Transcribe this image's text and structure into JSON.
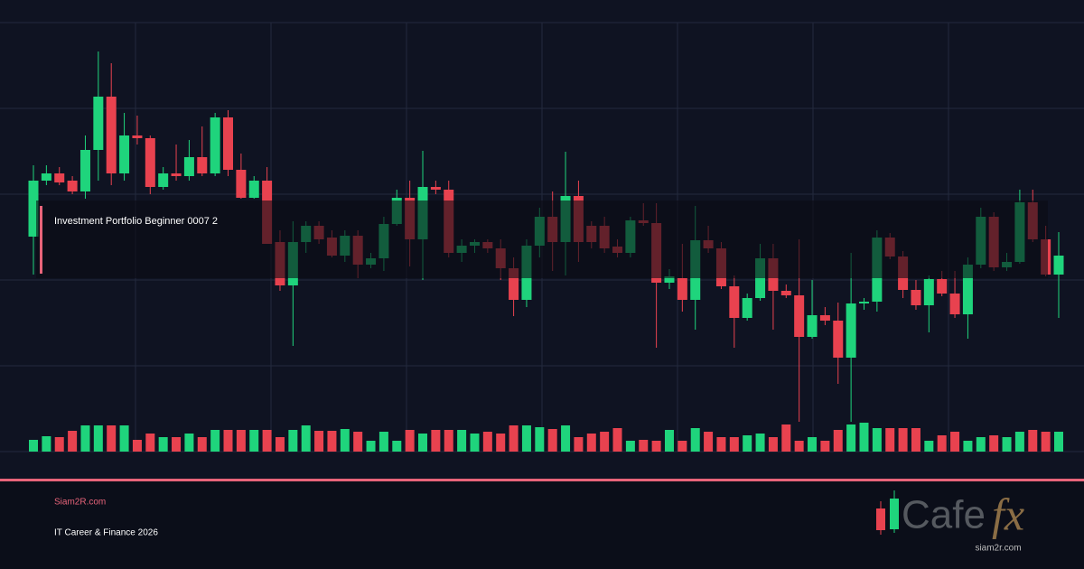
{
  "chart_data": {
    "type": "candlestick",
    "up_color": "#1fd47c",
    "down_color": "#e8424f",
    "ylim": [
      0,
      500
    ],
    "volume_ylim": [
      0,
      100
    ],
    "open": [
      238,
      300,
      308,
      300,
      288,
      334,
      393,
      308,
      350,
      347,
      293,
      308,
      305,
      326,
      308,
      370,
      312,
      281,
      300,
      232,
      184,
      232,
      250,
      237,
      217,
      239,
      207,
      214,
      252,
      281,
      235,
      293,
      290,
      220,
      228,
      232,
      225,
      203,
      168,
      228,
      260,
      232,
      283,
      250,
      250,
      227,
      220,
      256,
      253,
      187,
      192,
      168,
      234,
      225,
      183,
      148,
      170,
      214,
      178,
      173,
      127,
      151,
      145,
      104,
      164,
      166,
      237,
      216,
      179,
      162,
      191,
      175,
      152,
      207,
      260,
      204,
      210,
      276,
      235,
      196
    ],
    "high": [
      317,
      317,
      315,
      305,
      350,
      443,
      430,
      375,
      372,
      350,
      315,
      340,
      345,
      360,
      375,
      378,
      330,
      305,
      315,
      245,
      255,
      255,
      255,
      245,
      245,
      245,
      220,
      260,
      290,
      300,
      333,
      300,
      300,
      235,
      235,
      235,
      235,
      215,
      235,
      270,
      288,
      332,
      300,
      255,
      260,
      235,
      260,
      275,
      275,
      202,
      230,
      272,
      250,
      232,
      195,
      175,
      230,
      230,
      185,
      235,
      190,
      160,
      165,
      220,
      170,
      245,
      242,
      222,
      190,
      195,
      200,
      200,
      215,
      270,
      265,
      220,
      290,
      290,
      250,
      243
    ],
    "low": [
      196,
      295,
      295,
      285,
      280,
      300,
      295,
      300,
      340,
      285,
      290,
      300,
      300,
      305,
      305,
      305,
      280,
      280,
      230,
      178,
      117,
      220,
      230,
      215,
      210,
      192,
      203,
      200,
      250,
      205,
      190,
      285,
      215,
      210,
      220,
      220,
      190,
      150,
      160,
      215,
      200,
      195,
      210,
      225,
      220,
      215,
      215,
      250,
      115,
      180,
      155,
      135,
      220,
      180,
      115,
      145,
      167,
      135,
      170,
      33,
      125,
      140,
      75,
      33,
      157,
      155,
      213,
      170,
      157,
      132,
      172,
      148,
      125,
      203,
      200,
      200,
      208,
      232,
      194,
      148
    ],
    "close": [
      300,
      308,
      298,
      288,
      334,
      393,
      308,
      350,
      347,
      293,
      308,
      305,
      326,
      308,
      370,
      312,
      281,
      300,
      230,
      184,
      232,
      250,
      235,
      217,
      239,
      207,
      214,
      252,
      281,
      235,
      293,
      290,
      220,
      228,
      232,
      225,
      203,
      168,
      228,
      260,
      232,
      283,
      232,
      232,
      225,
      220,
      256,
      253,
      187,
      194,
      168,
      234,
      225,
      183,
      148,
      170,
      214,
      178,
      173,
      127,
      151,
      145,
      104,
      164,
      166,
      237,
      216,
      179,
      162,
      191,
      175,
      152,
      207,
      260,
      204,
      210,
      276,
      235,
      196,
      217
    ],
    "volume": [
      13,
      17,
      16,
      23,
      29,
      29,
      29,
      29,
      13,
      20,
      16,
      16,
      20,
      16,
      24,
      24,
      24,
      24,
      24,
      16,
      24,
      29,
      23,
      23,
      25,
      22,
      12,
      22,
      12,
      24,
      20,
      24,
      24,
      24,
      20,
      22,
      20,
      29,
      29,
      27,
      25,
      29,
      16,
      20,
      22,
      26,
      12,
      13,
      12,
      24,
      12,
      26,
      22,
      16,
      16,
      18,
      20,
      16,
      30,
      12,
      16,
      12,
      24,
      30,
      32,
      26,
      26,
      26,
      26,
      12,
      18,
      22,
      12,
      16,
      18,
      16,
      22,
      24,
      22,
      22
    ]
  },
  "overlay_label": "Investment Portfolio Beginner 0007 2",
  "footer": {
    "site": "Siam2R.com",
    "tagline": "IT Career & Finance 2026"
  },
  "logo": {
    "brand": "Cafe",
    "suffix": "fx",
    "url": "siam2r.com"
  }
}
